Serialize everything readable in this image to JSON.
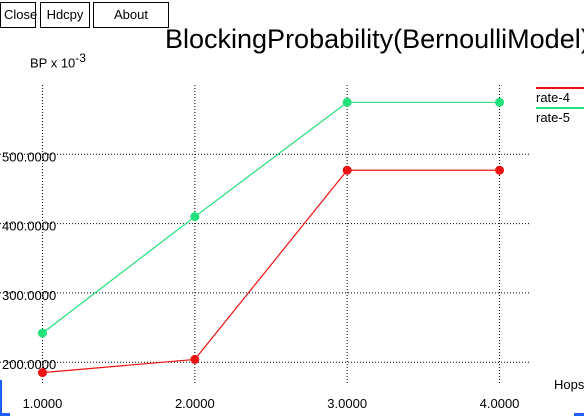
{
  "toolbar": {
    "close_label": "Close",
    "hdcpy_label": "Hdcpy",
    "about_label": "About"
  },
  "chart_data": {
    "type": "line",
    "title": "BlockingProbability(BernoulliModel)",
    "ylabel_prefix": "BP x 10",
    "ylabel_exponent": "-3",
    "xlabel": "Hops",
    "x": [
      1,
      2,
      3,
      4
    ],
    "x_ticks": [
      "1.0000",
      "2.0000",
      "3.0000",
      "4.0000"
    ],
    "y_ticks": [
      {
        "value": 200,
        "label": "200.0000"
      },
      {
        "value": 300,
        "label": "300.0000"
      },
      {
        "value": 400,
        "label": "400.0000"
      },
      {
        "value": 500,
        "label": "500.0000"
      }
    ],
    "xlim": [
      0.8,
      4.2
    ],
    "ylim": [
      170,
      600
    ],
    "grid": true,
    "legend_position": "top-right",
    "series": [
      {
        "name": "rate-4",
        "color": "#ee1111",
        "values": [
          185,
          204,
          477,
          477
        ]
      },
      {
        "name": "rate-5",
        "color": "#22e07a",
        "values": [
          242,
          410,
          575,
          575
        ]
      }
    ]
  }
}
